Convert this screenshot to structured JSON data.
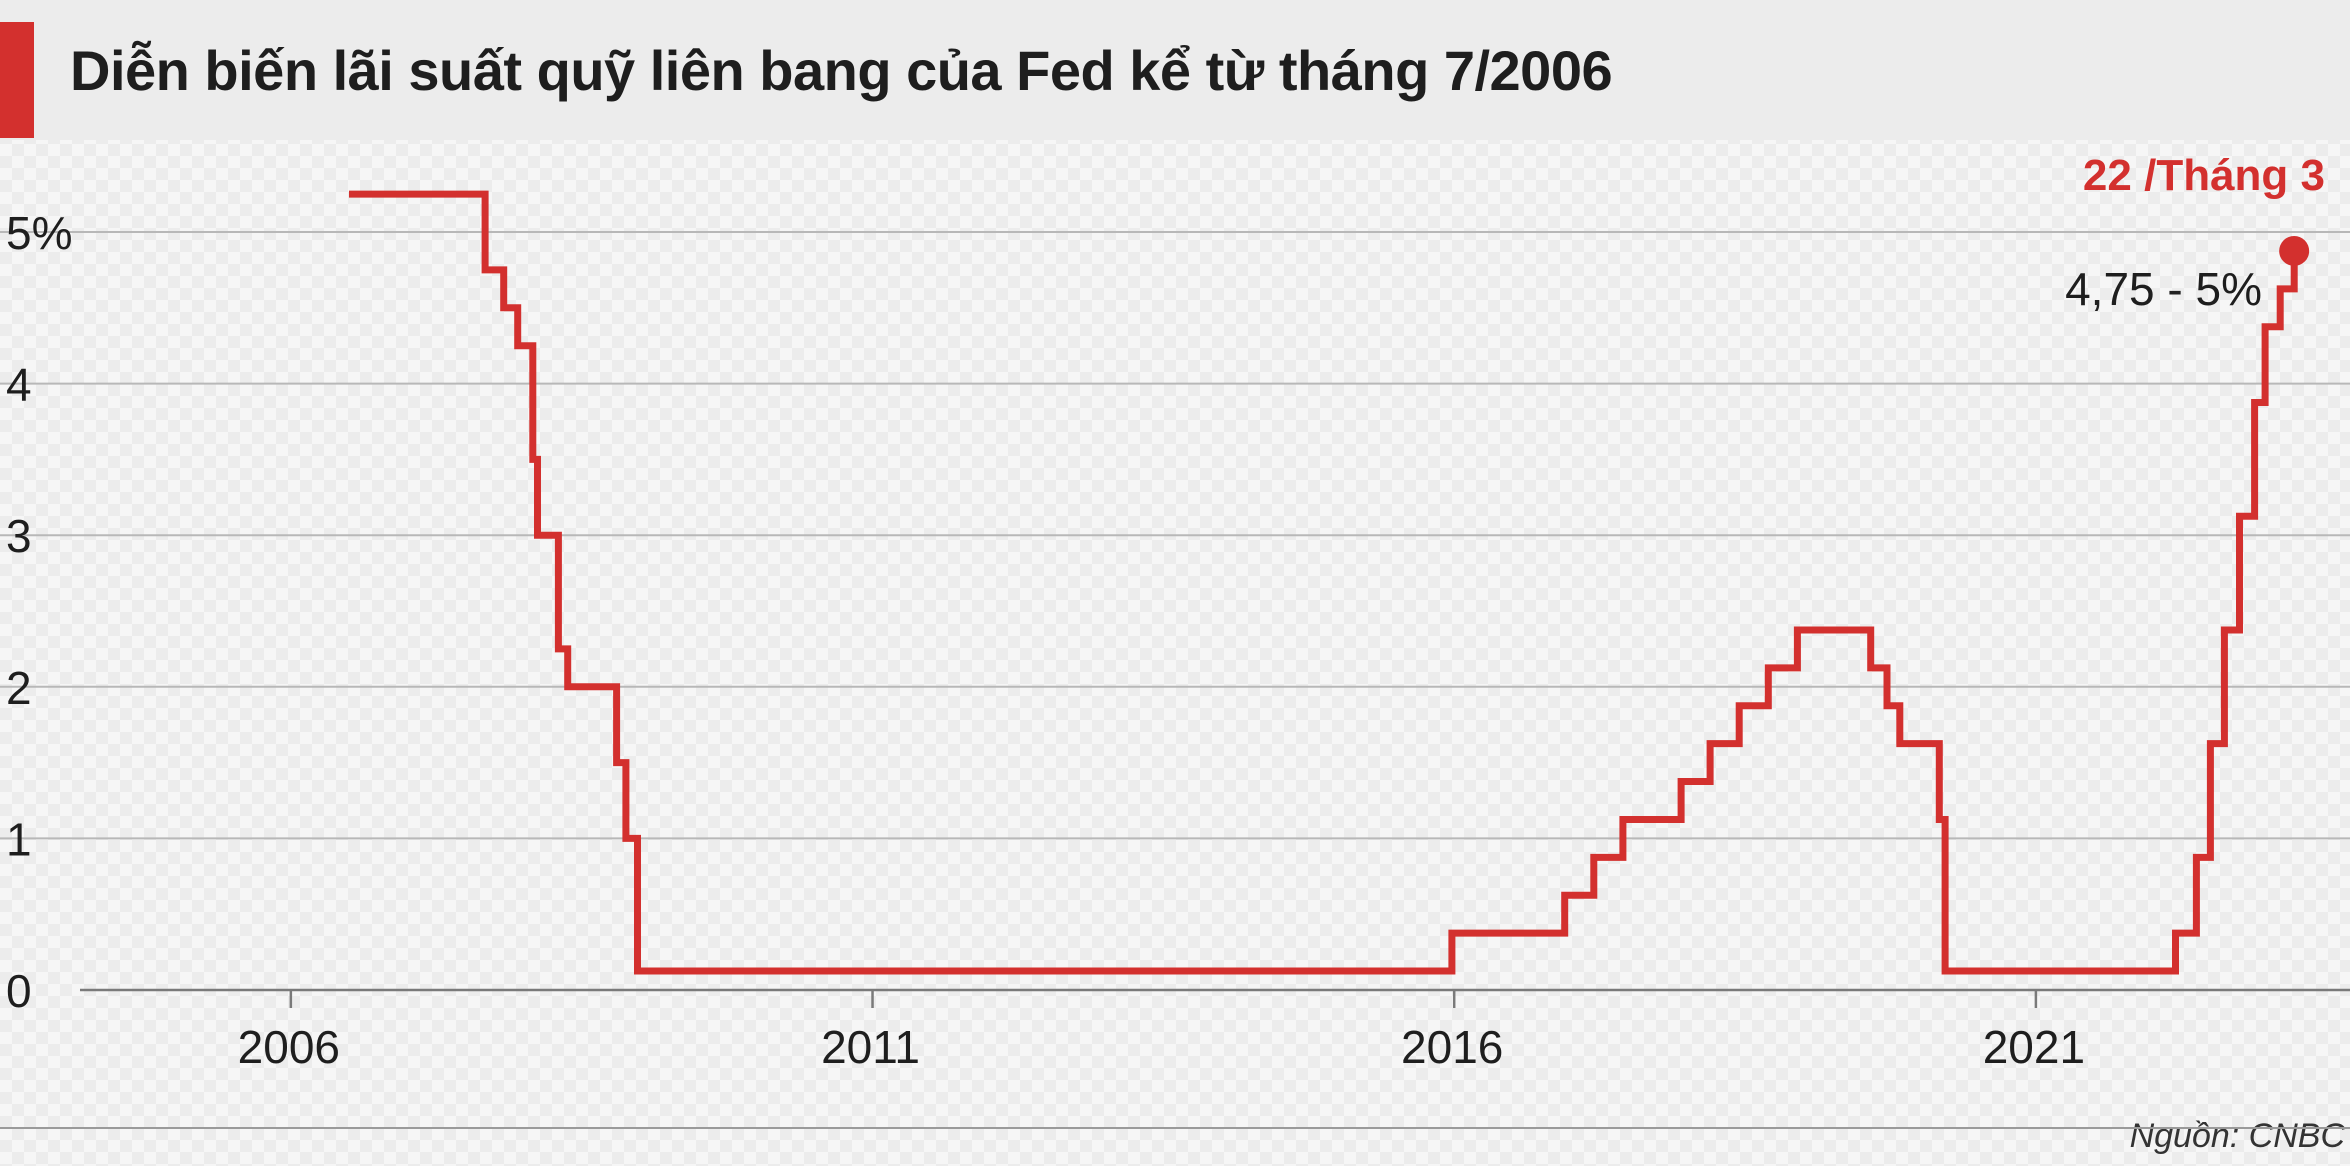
{
  "header": {
    "title": "Diễn biến lãi suất quỹ liên bang của Fed kể từ tháng 7/2006"
  },
  "colors": {
    "series": "#d3302e",
    "title_accent": "#d3302e",
    "grid": "#b8b8b8",
    "text": "#1e1e1e"
  },
  "source_note": "Nguồn: CNBC",
  "chart_data": {
    "type": "line",
    "step": true,
    "title": "Diễn biến lãi suất quỹ liên bang của Fed kể từ tháng 7/2006",
    "xlabel": "",
    "ylabel": "",
    "xlim": [
      2003.5,
      2023.7
    ],
    "ylim": [
      0,
      5
    ],
    "x_ticks": [
      2006,
      2011,
      2016,
      2021
    ],
    "x_tick_labels": [
      "2006",
      "2011",
      "2016",
      "2021"
    ],
    "y_ticks": [
      0,
      1,
      2,
      3,
      4,
      5
    ],
    "y_tick_labels": [
      "0",
      "1",
      "2",
      "3",
      "4",
      "5%"
    ],
    "grid": "horizontal",
    "series": [
      {
        "name": "",
        "points": [
          [
            2006.5,
            5.25
          ],
          [
            2007.67,
            5.25
          ],
          [
            2007.67,
            4.75
          ],
          [
            2007.83,
            4.75
          ],
          [
            2007.83,
            4.5
          ],
          [
            2007.95,
            4.5
          ],
          [
            2007.95,
            4.25
          ],
          [
            2008.08,
            4.25
          ],
          [
            2008.08,
            3.5
          ],
          [
            2008.12,
            3.5
          ],
          [
            2008.12,
            3.0
          ],
          [
            2008.3,
            3.0
          ],
          [
            2008.3,
            2.25
          ],
          [
            2008.38,
            2.25
          ],
          [
            2008.38,
            2.0
          ],
          [
            2008.8,
            2.0
          ],
          [
            2008.8,
            1.5
          ],
          [
            2008.88,
            1.5
          ],
          [
            2008.88,
            1.0
          ],
          [
            2008.98,
            1.0
          ],
          [
            2008.98,
            0.125
          ],
          [
            2015.98,
            0.125
          ],
          [
            2015.98,
            0.375
          ],
          [
            2016.95,
            0.375
          ],
          [
            2016.95,
            0.625
          ],
          [
            2017.2,
            0.625
          ],
          [
            2017.2,
            0.875
          ],
          [
            2017.45,
            0.875
          ],
          [
            2017.45,
            1.125
          ],
          [
            2017.95,
            1.125
          ],
          [
            2017.95,
            1.375
          ],
          [
            2018.2,
            1.375
          ],
          [
            2018.2,
            1.625
          ],
          [
            2018.45,
            1.625
          ],
          [
            2018.45,
            1.875
          ],
          [
            2018.7,
            1.875
          ],
          [
            2018.7,
            2.125
          ],
          [
            2018.95,
            2.125
          ],
          [
            2018.95,
            2.375
          ],
          [
            2019.58,
            2.375
          ],
          [
            2019.58,
            2.125
          ],
          [
            2019.72,
            2.125
          ],
          [
            2019.72,
            1.875
          ],
          [
            2019.83,
            1.875
          ],
          [
            2019.83,
            1.625
          ],
          [
            2020.17,
            1.625
          ],
          [
            2020.17,
            1.125
          ],
          [
            2020.22,
            1.125
          ],
          [
            2020.22,
            0.125
          ],
          [
            2022.2,
            0.125
          ],
          [
            2022.2,
            0.375
          ],
          [
            2022.38,
            0.375
          ],
          [
            2022.38,
            0.875
          ],
          [
            2022.5,
            0.875
          ],
          [
            2022.5,
            1.625
          ],
          [
            2022.62,
            1.625
          ],
          [
            2022.62,
            2.375
          ],
          [
            2022.75,
            2.375
          ],
          [
            2022.75,
            3.125
          ],
          [
            2022.88,
            3.125
          ],
          [
            2022.88,
            3.875
          ],
          [
            2022.97,
            3.875
          ],
          [
            2022.97,
            4.375
          ],
          [
            2023.1,
            4.375
          ],
          [
            2023.1,
            4.625
          ],
          [
            2023.22,
            4.625
          ],
          [
            2023.22,
            4.875
          ]
        ]
      }
    ],
    "annotations": [
      {
        "x": 2023.22,
        "y": 4.875,
        "marker": "dot",
        "date": "22 /Tháng 3",
        "range": "4,75 - 5%"
      }
    ],
    "source": "Nguồn: CNBC"
  }
}
